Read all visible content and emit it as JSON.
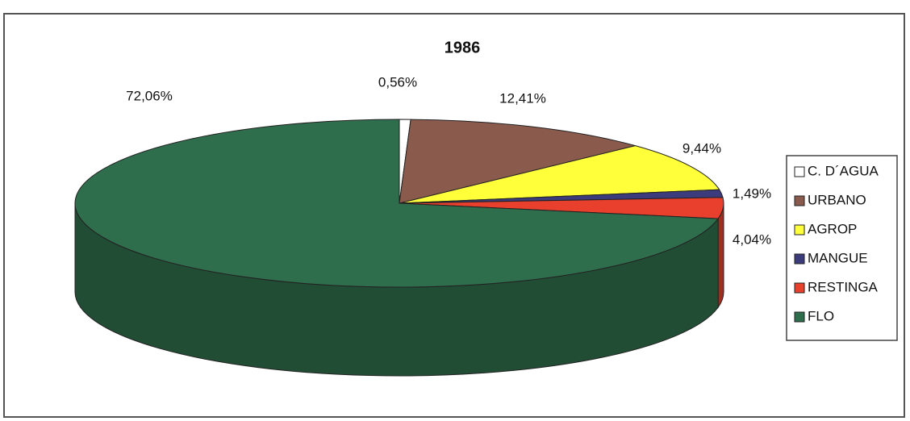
{
  "chart_data": {
    "type": "pie3d",
    "title": "1986",
    "categories": [
      "C. D´AGUA",
      "URBANO",
      "AGROP",
      "MANGUE",
      "RESTINGA",
      "FLO"
    ],
    "values": [
      0.56,
      12.41,
      9.44,
      1.49,
      4.04,
      72.06
    ],
    "value_labels": [
      "0,56%",
      "12,41%",
      "9,44%",
      "1,49%",
      "4,04%",
      "72,06%"
    ],
    "colors": [
      "#ffffff",
      "#8a5a4c",
      "#ffff3a",
      "#3c3c7c",
      "#e8402c",
      "#2f6e4c"
    ],
    "legend": "right"
  }
}
